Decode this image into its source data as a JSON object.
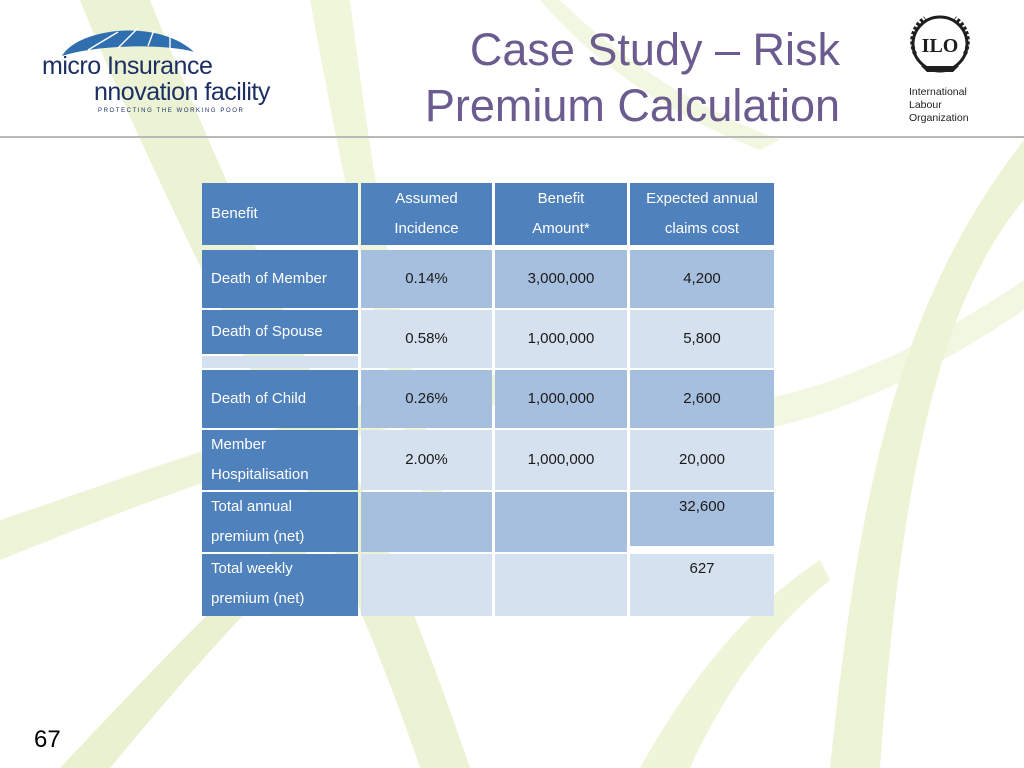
{
  "slide": {
    "title_line1": "Case Study – Risk",
    "title_line2": "Premium Calculation",
    "number": "67"
  },
  "logos": {
    "mif": {
      "line1": "micro Insurance",
      "line2": "nnovation facility",
      "tagline": "PROTECTING THE WORKING POOR",
      "color": "#1c2f63"
    },
    "ilo": {
      "emblem": "ILO",
      "line1": "International",
      "line2": "Labour",
      "line3": "Organization"
    }
  },
  "table": {
    "headers": {
      "benefit": "Benefit",
      "incidence_1": "Assumed",
      "incidence_2": "Incidence",
      "amount_1": "Benefit",
      "amount_2": "Amount*",
      "cost_1": "Expected annual",
      "cost_2": "claims cost"
    },
    "rows": [
      {
        "benefit": "Death of Member",
        "incidence": "0.14%",
        "amount": "3,000,000",
        "cost": "4,200"
      },
      {
        "benefit": "Death of Spouse",
        "incidence": "0.58%",
        "amount": "1,000,000",
        "cost": "5,800"
      },
      {
        "benefit": "Death of Child",
        "incidence": "0.26%",
        "amount": "1,000,000",
        "cost": "2,600"
      },
      {
        "benefit_1": "Member",
        "benefit_2": "Hospitalisation",
        "incidence": "2.00%",
        "amount": "1,000,000",
        "cost": "20,000"
      },
      {
        "benefit_1": "Total annual",
        "benefit_2": "premium (net)",
        "cost": "32,600"
      },
      {
        "benefit_1": "Total weekly",
        "benefit_2": "premium (net)",
        "cost": "627"
      }
    ],
    "colors": {
      "header": "#4f81bd",
      "band_dark": "#a7bfdf",
      "band_light": "#d6e1ef",
      "title": "#6b5b8e"
    }
  }
}
